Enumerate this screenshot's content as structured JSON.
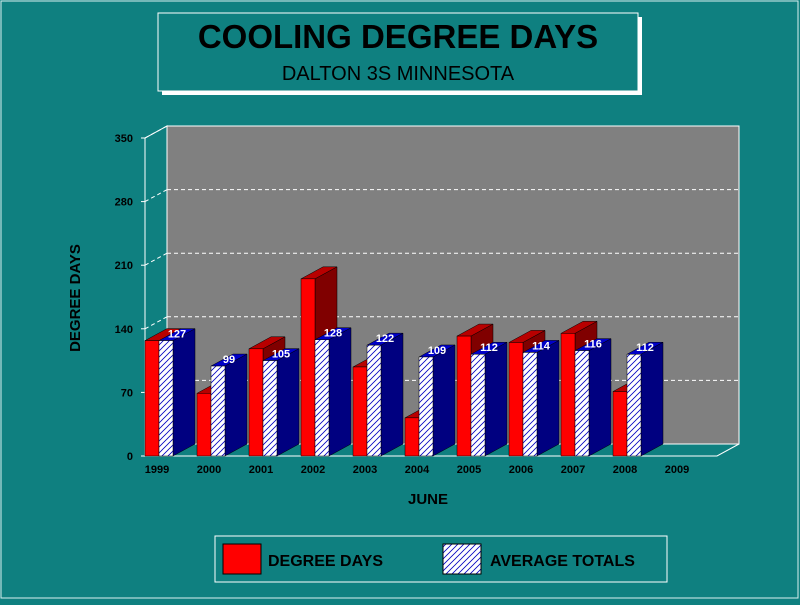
{
  "colors": {
    "background": "#0f8080",
    "plot_back": "#808080",
    "grid": "#ffffff",
    "degree_front": "#ff0000",
    "degree_top": "#b80000",
    "degree_side": "#800000",
    "avg_front": "#ffffff",
    "avg_hatch": "#0000c0",
    "avg_top": "#0000c8",
    "avg_side": "#000080",
    "title_text": "#000000",
    "value_label": "#ffffff"
  },
  "chart_data": {
    "type": "bar",
    "title": "COOLING DEGREE DAYS",
    "subtitle": "DALTON 3S MINNESOTA",
    "xlabel": "JUNE",
    "ylabel": "DEGREE DAYS",
    "ylim": [
      0,
      350
    ],
    "yticks": [
      "0",
      "70",
      "140",
      "210",
      "280",
      "350"
    ],
    "ytick_values": [
      0,
      70,
      140,
      210,
      280,
      350
    ],
    "grid": true,
    "legend_position": "bottom",
    "categories": [
      "1999",
      "2000",
      "2001",
      "2002",
      "2003",
      "2004",
      "2005",
      "2006",
      "2007",
      "2008",
      "2009"
    ],
    "series": [
      {
        "name": "DEGREE DAYS",
        "values": [
          127,
          69,
          118,
          195,
          98,
          42,
          132,
          125,
          135,
          71,
          null
        ]
      },
      {
        "name": "AVERAGE TOTALS",
        "values": [
          127,
          99,
          105,
          128,
          122,
          109,
          112,
          114,
          116,
          112,
          null
        ],
        "labels": [
          "127",
          "99",
          "105",
          "128",
          "122",
          "109",
          "112",
          "114",
          "116",
          "112",
          ""
        ]
      }
    ]
  }
}
